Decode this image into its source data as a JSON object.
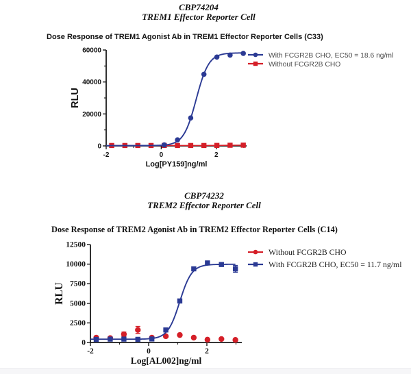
{
  "page": {
    "section1": {
      "header_line1": "CBP74204",
      "header_line2": "TREM1 Effector Reporter Cell"
    },
    "section2": {
      "header_line1": "CBP74232",
      "header_line2": "TREM2 Effector Reporter Cell"
    }
  },
  "colors": {
    "blue": "#2B3A94",
    "red": "#D51F28",
    "axis": "#1A1A1A"
  },
  "chart_data": [
    {
      "id": "trem1-dose-response",
      "type": "scatter",
      "title": "Dose Response of TREM1 Agonist Ab in TREM1 Effector Reporter Cells (C33)",
      "xlabel": "Log[PY159]ng/ml",
      "ylabel": "RLU",
      "xlim": [
        -2,
        3.1
      ],
      "ylim": [
        0,
        60000
      ],
      "xticks": [
        -2,
        0,
        2
      ],
      "yticks": [
        0,
        20000,
        40000,
        60000
      ],
      "xminor": [
        -1,
        1,
        3
      ],
      "yminor": [
        10000,
        30000,
        50000
      ],
      "grid": false,
      "legend_position": "right",
      "series": [
        {
          "name": "With FCGR2B CHO, EC50 = 18.6 ng/ml",
          "color": "#2B3A94",
          "marker": "circle",
          "z": 2,
          "x": [
            0.11,
            0.59,
            1.07,
            1.55,
            2.02,
            2.5,
            2.98
          ],
          "y": [
            600,
            3800,
            17500,
            44800,
            55600,
            56800,
            57900
          ],
          "fit": {
            "model": "4PL",
            "bottom": 200,
            "top": 58200,
            "logec50": 1.27,
            "hill": 1.9,
            "range": [
              -2,
              2.98
            ]
          }
        },
        {
          "name": "Without FCGR2B CHO",
          "color": "#D51F28",
          "marker": "square",
          "z": 1,
          "connect": true,
          "x": [
            -1.8,
            -1.32,
            -0.85,
            -0.37,
            0.11,
            0.59,
            1.07,
            1.55,
            2.02,
            2.5,
            2.98
          ],
          "y": [
            250,
            250,
            250,
            250,
            300,
            250,
            250,
            250,
            300,
            400,
            450
          ]
        }
      ]
    },
    {
      "id": "trem2-dose-response",
      "type": "scatter",
      "title": "Dose Response of TREM2 Agonist Ab in TREM2 Effector Reporter Cells (C14)",
      "xlabel": "Log[AL002]ng/ml",
      "ylabel": "RLU",
      "xlim": [
        -2,
        3.2
      ],
      "ylim": [
        0,
        12500
      ],
      "xticks": [
        -2,
        0,
        2
      ],
      "yticks": [
        0,
        2500,
        5000,
        7500,
        10000,
        12500
      ],
      "xminor": [
        -1,
        1,
        3
      ],
      "yminor": [],
      "grid": false,
      "legend_position": "right",
      "series": [
        {
          "name": "Without FCGR2B CHO",
          "color": "#D51F28",
          "marker": "circle",
          "z": 1,
          "x": [
            -1.8,
            -1.32,
            -0.85,
            -0.37,
            0.11,
            0.59,
            1.07,
            1.55,
            2.02,
            2.5,
            2.98
          ],
          "y": [
            620,
            560,
            1050,
            1600,
            620,
            800,
            950,
            620,
            360,
            440,
            330
          ],
          "yerr": [
            0,
            0,
            280,
            450,
            0,
            0,
            0,
            0,
            0,
            0,
            0
          ]
        },
        {
          "name": "With FCGR2B CHO, EC50 = 11.7 ng/ml",
          "color": "#2B3A94",
          "marker": "square",
          "z": 2,
          "x": [
            -1.8,
            -1.32,
            -0.85,
            -0.37,
            0.11,
            0.59,
            1.07,
            1.55,
            2.02,
            2.5,
            2.98
          ],
          "y": [
            390,
            430,
            430,
            400,
            450,
            1600,
            5300,
            9400,
            10150,
            9950,
            9400
          ],
          "yerr": [
            0,
            0,
            0,
            0,
            0,
            0,
            0,
            0,
            0,
            150,
            430
          ],
          "fit": {
            "model": "4PL",
            "bottom": 420,
            "top": 9980,
            "logec50": 1.068,
            "hill": 2.1,
            "range": [
              -2,
              2.98
            ]
          }
        }
      ]
    }
  ]
}
